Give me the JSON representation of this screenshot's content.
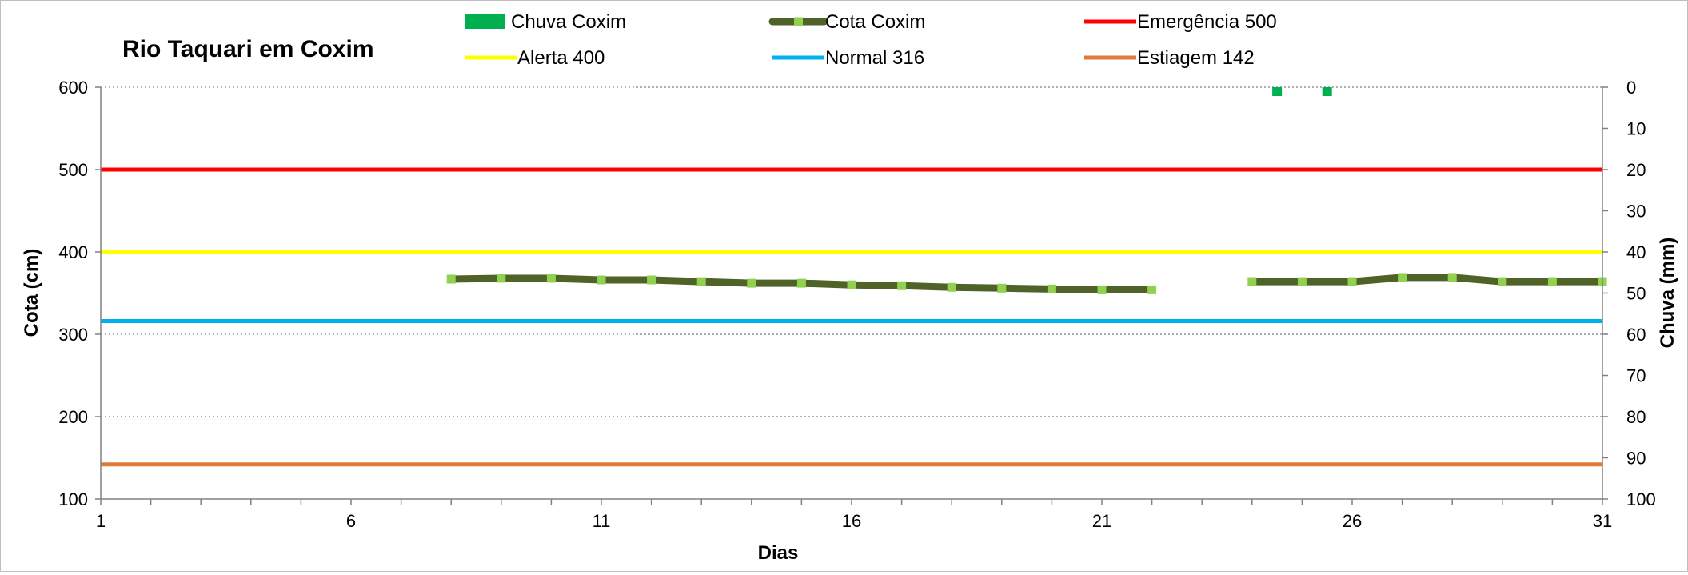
{
  "chart_data": {
    "type": "line",
    "title": "Rio Taquari em Coxim",
    "xlabel": "Dias",
    "ylabel": "Cota  (cm)",
    "y2label": "Chuva (mm)",
    "xlim": [
      1,
      31
    ],
    "ylim": [
      100,
      600
    ],
    "y2lim": [
      0,
      100
    ],
    "y2_inverted": true,
    "x_ticks": [
      1,
      6,
      11,
      16,
      21,
      26,
      31
    ],
    "y_ticks": [
      100,
      200,
      300,
      400,
      500,
      600
    ],
    "y2_ticks": [
      0,
      10,
      20,
      30,
      40,
      50,
      60,
      70,
      80,
      90,
      100
    ],
    "grid": "horizontal dotted",
    "legend_position": "top",
    "thresholds": [
      {
        "name": "Emergência 500",
        "value": 500,
        "color": "#ff0000"
      },
      {
        "name": "Alerta 400",
        "value": 400,
        "color": "#ffff00"
      },
      {
        "name": "Normal  316",
        "value": 316,
        "color": "#00b0f0"
      },
      {
        "name": "Estiagem 142",
        "value": 142,
        "color": "#e07b39"
      }
    ],
    "series": [
      {
        "name": "Cota Coxim",
        "axis": "left",
        "line_color": "#4f6228",
        "marker_color": "#92d050",
        "points": [
          [
            8,
            367
          ],
          [
            9,
            368
          ],
          [
            10,
            368
          ],
          [
            11,
            366
          ],
          [
            12,
            366
          ],
          [
            13,
            364
          ],
          [
            14,
            362
          ],
          [
            15,
            362
          ],
          [
            16,
            360
          ],
          [
            17,
            359
          ],
          [
            18,
            357
          ],
          [
            19,
            356
          ],
          [
            20,
            355
          ],
          [
            21,
            354
          ],
          [
            22,
            354
          ],
          [
            24,
            364
          ],
          [
            25,
            364
          ],
          [
            26,
            364
          ],
          [
            27,
            369
          ],
          [
            28,
            369
          ],
          [
            29,
            364
          ],
          [
            30,
            364
          ],
          [
            31,
            364
          ]
        ]
      },
      {
        "name": "Chuva Coxim",
        "axis": "right",
        "type": "bar",
        "color": "#00b050",
        "points": [
          [
            24.5,
            0
          ],
          [
            25.5,
            0
          ]
        ]
      }
    ]
  }
}
